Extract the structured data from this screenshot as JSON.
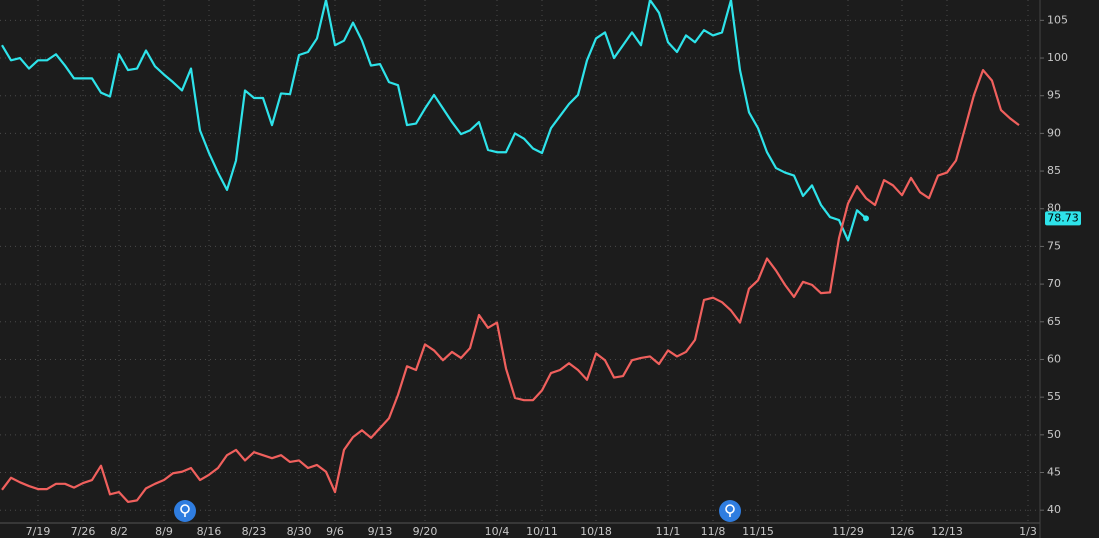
{
  "chart_data": {
    "type": "line",
    "categories": [
      null,
      null,
      null,
      null,
      "7/19",
      null,
      null,
      null,
      null,
      "7/26",
      null,
      null,
      null,
      "8/2",
      null,
      null,
      null,
      null,
      "8/9",
      null,
      null,
      null,
      null,
      "8/16",
      null,
      null,
      null,
      null,
      "8/23",
      null,
      null,
      null,
      null,
      "8/30",
      null,
      null,
      null,
      "9/6",
      null,
      null,
      null,
      null,
      "9/13",
      null,
      null,
      null,
      null,
      "9/20",
      null,
      null,
      null,
      null,
      null,
      null,
      null,
      "10/4",
      null,
      null,
      null,
      null,
      "10/11",
      null,
      null,
      null,
      null,
      null,
      "10/18",
      null,
      null,
      null,
      null,
      null,
      null,
      null,
      "11/1",
      null,
      null,
      null,
      null,
      "11/8",
      null,
      null,
      null,
      null,
      "11/15",
      null,
      null,
      null,
      null,
      null,
      null,
      null,
      null,
      null,
      "11/29",
      null,
      null,
      null,
      null,
      null,
      "12/6",
      null,
      null,
      null,
      null,
      "12/13",
      null,
      null,
      null,
      null,
      null,
      null,
      null,
      null,
      "1/3"
    ],
    "series": [
      {
        "color": "#2ee3ea",
        "values": [
          101.7,
          99.7,
          100,
          98.6,
          99.7,
          99.7,
          100.5,
          99,
          97.3,
          97.3,
          97.3,
          95.4,
          94.9,
          100.5,
          98.4,
          98.6,
          101,
          98.9,
          97.8,
          96.8,
          95.7,
          98.6,
          90.4,
          87.4,
          84.8,
          82.5,
          86.4,
          95.7,
          94.7,
          94.7,
          91.1,
          95.3,
          95.2,
          100.4,
          100.8,
          102.6,
          107.7,
          101.7,
          102.3,
          104.7,
          102.3,
          99,
          99.2,
          96.8,
          96.4,
          91.1,
          91.3,
          93.3,
          95.1,
          93.3,
          91.5,
          89.9,
          90.4,
          91.5,
          87.8,
          87.5,
          87.5,
          90,
          89.3,
          88,
          87.4,
          90.7,
          92.3,
          93.9,
          95.1,
          99.7,
          102.6,
          103.4,
          100,
          101.7,
          103.4,
          101.7,
          107.7,
          106,
          102.1,
          100.8,
          103,
          102.1,
          103.7,
          103,
          103.4,
          107.7,
          98.4,
          92.8,
          90.7,
          87.5,
          85.4,
          84.8,
          84.4,
          81.7,
          83.1,
          80.5,
          78.9,
          78.5,
          75.8,
          79.8,
          78.73,
          null,
          null,
          null,
          null,
          null,
          null,
          null,
          null,
          null,
          null,
          null,
          null,
          null,
          null,
          null,
          null,
          null,
          null
        ]
      },
      {
        "color": "#f0605d",
        "values": [
          42.7,
          44.3,
          43.7,
          43.2,
          42.8,
          42.8,
          43.5,
          43.5,
          43,
          43.6,
          44,
          45.9,
          42.1,
          42.4,
          41.1,
          41.3,
          42.9,
          43.5,
          44,
          44.9,
          45.1,
          45.6,
          44,
          44.7,
          45.6,
          47.3,
          48,
          46.6,
          47.7,
          47.3,
          46.9,
          47.3,
          46.4,
          46.6,
          45.6,
          46,
          45.1,
          42.4,
          48,
          49.7,
          50.6,
          49.6,
          50.9,
          52.2,
          55.3,
          59.1,
          58.6,
          62,
          61.2,
          59.9,
          61,
          60.2,
          61.5,
          65.9,
          64.2,
          64.9,
          58.8,
          54.9,
          54.6,
          54.6,
          55.9,
          58.2,
          58.6,
          59.5,
          58.6,
          57.3,
          60.8,
          59.9,
          57.6,
          57.8,
          59.9,
          60.2,
          60.4,
          59.4,
          61.2,
          60.4,
          61,
          62.6,
          67.9,
          68.2,
          67.6,
          66.5,
          64.9,
          69.4,
          70.5,
          73.4,
          71.8,
          69.9,
          68.3,
          70.3,
          69.9,
          68.8,
          68.9,
          76.1,
          80.7,
          83,
          81.4,
          80.5,
          83.8,
          83.1,
          81.8,
          84.1,
          82.2,
          81.4,
          84.4,
          84.8,
          86.4,
          90.7,
          95.1,
          98.4,
          97,
          93.1,
          92,
          91.1,
          null
        ]
      }
    ],
    "ylim": [
      38.3,
      107.7
    ],
    "yticks": [
      40,
      45,
      50,
      55,
      60,
      65,
      70,
      75,
      80,
      85,
      90,
      95,
      100,
      105
    ],
    "grid": true
  }
}
